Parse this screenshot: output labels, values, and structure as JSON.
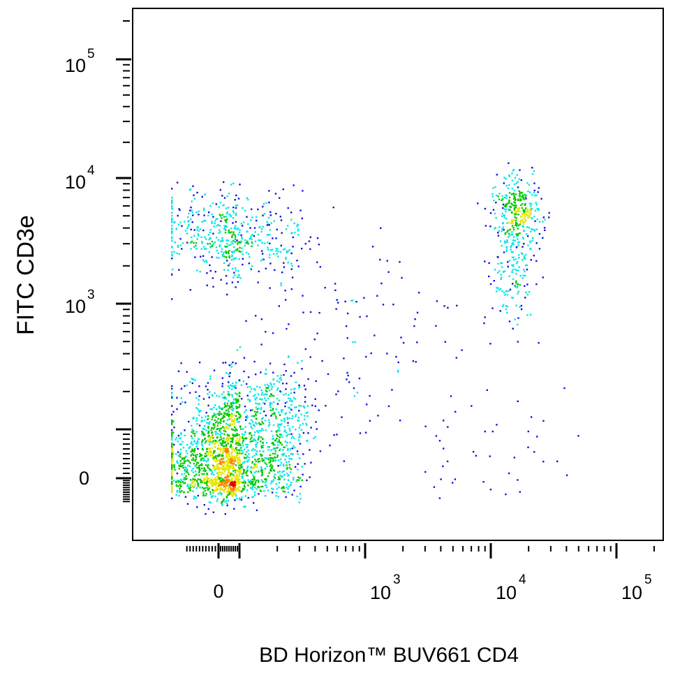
{
  "chart_data": {
    "type": "scatter",
    "subtype": "flow-cytometry-density-dot-plot",
    "title": "",
    "xlabel": "BD Horizon™ BUV661 CD4",
    "ylabel": "FITC  CD3e",
    "x_scale": "biexponential",
    "y_scale": "biexponential",
    "xlim": [
      -100,
      200000
    ],
    "ylim": [
      -100,
      200000
    ],
    "grid": false,
    "x_ticks": [
      {
        "value": 0,
        "base": "0",
        "exp": ""
      },
      {
        "value": 1000,
        "base": "10",
        "exp": "3"
      },
      {
        "value": 10000,
        "base": "10",
        "exp": "4"
      },
      {
        "value": 100000,
        "base": "10",
        "exp": "5"
      }
    ],
    "y_ticks": [
      {
        "value": 0,
        "base": "0",
        "exp": ""
      },
      {
        "value": 1000,
        "base": "10",
        "exp": "3"
      },
      {
        "value": 10000,
        "base": "10",
        "exp": "4"
      },
      {
        "value": 100000,
        "base": "10",
        "exp": "5"
      }
    ],
    "color_scale": [
      "#1010e0",
      "#00e6e6",
      "#00c800",
      "#e6e600",
      "#ff8000",
      "#e00000"
    ],
    "populations": [
      {
        "center": [
          20,
          30
        ],
        "spread": [
          110,
          55
        ],
        "points": 1450
      },
      {
        "center": [
          120,
          120
        ],
        "spread": [
          120,
          90
        ],
        "points": 700
      },
      {
        "center": [
          60,
          3500
        ],
        "spread": [
          130,
          0.18
        ],
        "points": 520
      },
      {
        "center": [
          16000,
          5500
        ],
        "spread": [
          0.09,
          0.13
        ],
        "points": 320
      },
      {
        "center": [
          14500,
          1800
        ],
        "spread": [
          0.1,
          0.22
        ],
        "points": 160
      },
      {
        "center": [
          8000,
          70
        ],
        "spread": [
          0.35,
          60
        ],
        "points": 40
      },
      {
        "center": [
          600,
          500
        ],
        "spread": [
          0.5,
          0.5
        ],
        "points": 120
      }
    ]
  }
}
